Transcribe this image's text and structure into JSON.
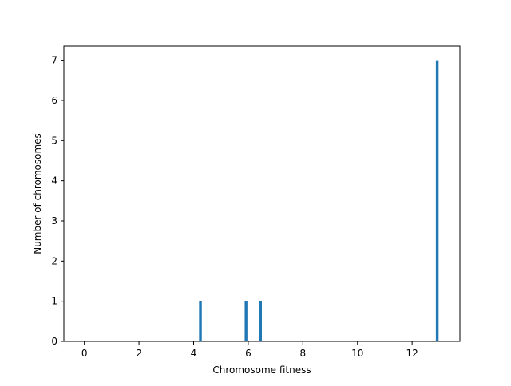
{
  "chart_data": {
    "type": "bar",
    "title": "",
    "xlabel": "Chromosome fitness",
    "ylabel": "Number of chromosomes",
    "xlim": [
      -0.75,
      13.75
    ],
    "ylim": [
      0,
      7.35
    ],
    "xticks": [
      0,
      2,
      4,
      6,
      8,
      10,
      12
    ],
    "yticks": [
      0,
      1,
      2,
      3,
      4,
      5,
      6,
      7
    ],
    "grid": false,
    "legend": "none",
    "bar_color": "#1f77b4",
    "bar_width": 0.1,
    "bars": [
      {
        "x": 4.25,
        "value": 1
      },
      {
        "x": 5.92,
        "value": 1
      },
      {
        "x": 6.45,
        "value": 1
      },
      {
        "x": 12.92,
        "value": 7
      }
    ]
  }
}
